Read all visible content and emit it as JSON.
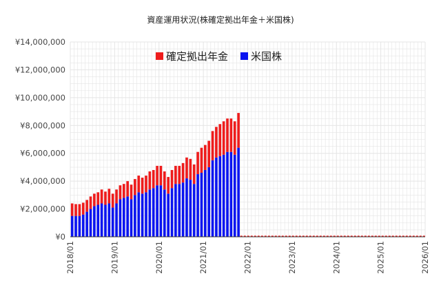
{
  "chart_data": {
    "type": "bar",
    "stacked": true,
    "title": "資産運用状況(株確定拠出年金＋米国株)",
    "xlabel": "",
    "ylabel": "",
    "ylim": [
      0,
      14000000
    ],
    "yticks": [
      0,
      2000000,
      4000000,
      6000000,
      8000000,
      10000000,
      12000000,
      14000000
    ],
    "ytick_labels": [
      "¥0",
      "¥2,000,000",
      "¥4,000,000",
      "¥6,000,000",
      "¥8,000,000",
      "¥10,000,000",
      "¥12,000,000",
      "¥14,000,000"
    ],
    "x_range": [
      "2018/01",
      "2026/01"
    ],
    "xtick_labels": [
      "2018/01",
      "2019/01",
      "2020/01",
      "2021/01",
      "2022/01",
      "2023/01",
      "2024/01",
      "2025/01",
      "2026/01"
    ],
    "grid": true,
    "legend_position": "top-center",
    "colors": {
      "dc_pension": "#ee1c1c",
      "us_stocks": "#0a14f0",
      "grid": "#e4e4e4",
      "axis_text": "#444444"
    },
    "categories": [
      "2018/01",
      "2018/02",
      "2018/03",
      "2018/04",
      "2018/05",
      "2018/06",
      "2018/07",
      "2018/08",
      "2018/09",
      "2018/10",
      "2018/11",
      "2018/12",
      "2019/01",
      "2019/02",
      "2019/03",
      "2019/04",
      "2019/05",
      "2019/06",
      "2019/07",
      "2019/08",
      "2019/09",
      "2019/10",
      "2019/11",
      "2019/12",
      "2020/01",
      "2020/02",
      "2020/03",
      "2020/04",
      "2020/05",
      "2020/06",
      "2020/07",
      "2020/08",
      "2020/09",
      "2020/10",
      "2020/11",
      "2020/12",
      "2021/01",
      "2021/02",
      "2021/03",
      "2021/04",
      "2021/05",
      "2021/06",
      "2021/07",
      "2021/08",
      "2021/09",
      "2021/10",
      "2021/11",
      "2021/12"
    ],
    "series": [
      {
        "name": "米国株",
        "color_key": "us_stocks",
        "values": [
          1500000,
          1500000,
          1500000,
          1600000,
          1800000,
          2000000,
          2200000,
          2300000,
          2400000,
          2300000,
          2400000,
          2100000,
          2400000,
          2700000,
          2800000,
          2900000,
          2700000,
          3000000,
          3200000,
          3100000,
          3200000,
          3400000,
          3500000,
          3700000,
          3700000,
          3400000,
          3100000,
          3500000,
          3800000,
          3800000,
          3900000,
          4200000,
          4100000,
          3800000,
          4500000,
          4600000,
          4800000,
          5000000,
          5500000,
          5700000,
          5800000,
          5900000,
          6100000,
          6100000,
          5900000,
          6400000,
          0,
          0
        ]
      },
      {
        "name": "確定拠出年金",
        "color_key": "dc_pension",
        "values": [
          900000,
          850000,
          850000,
          850000,
          850000,
          900000,
          900000,
          900000,
          1000000,
          950000,
          1050000,
          1000000,
          1000000,
          1000000,
          1000000,
          1100000,
          1050000,
          1150000,
          1200000,
          1150000,
          1200000,
          1300000,
          1300000,
          1400000,
          1400000,
          1300000,
          1200000,
          1300000,
          1300000,
          1300000,
          1400000,
          1500000,
          1500000,
          1400000,
          1600000,
          1800000,
          1800000,
          1900000,
          2100000,
          2200000,
          2300000,
          2400000,
          2400000,
          2400000,
          2400000,
          2500000,
          0,
          0
        ]
      }
    ]
  }
}
